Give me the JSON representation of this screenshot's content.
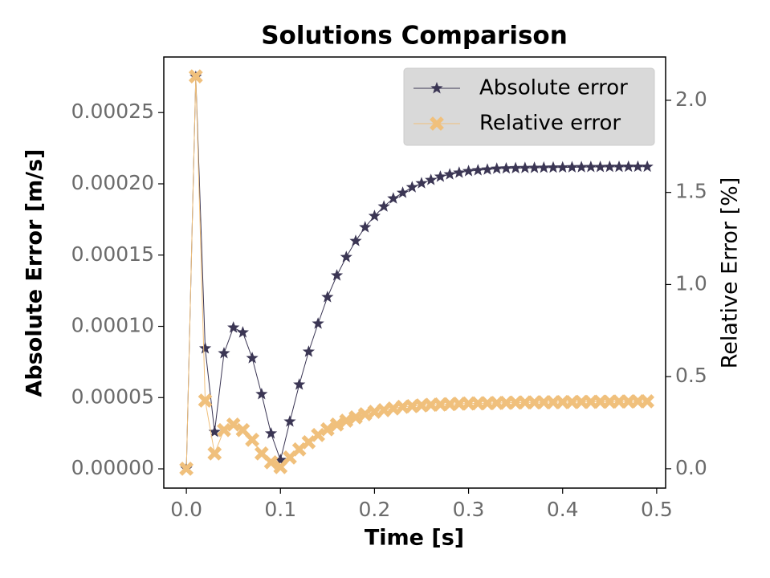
{
  "chart_data": {
    "type": "line",
    "title": "Solutions Comparison",
    "x_label": "Time [s]",
    "y_label": "Absolute Error [m/s]",
    "y2_label": "Relative Error [%]",
    "x": [
      0,
      0.01,
      0.02,
      0.03,
      0.04,
      0.05,
      0.06,
      0.07,
      0.08,
      0.09,
      0.1,
      0.11,
      0.12,
      0.13,
      0.14,
      0.15,
      0.16,
      0.17,
      0.18,
      0.19,
      0.2,
      0.21,
      0.22,
      0.23,
      0.24,
      0.25,
      0.26,
      0.27,
      0.28,
      0.29,
      0.3,
      0.31,
      0.32,
      0.33,
      0.34,
      0.35,
      0.36,
      0.37,
      0.38,
      0.39,
      0.4,
      0.41,
      0.42,
      0.43,
      0.44,
      0.45,
      0.46,
      0.47,
      0.48,
      0.49
    ],
    "series": [
      {
        "name": "Absolute error",
        "color": "#3b3654",
        "marker": "star",
        "axis": "y",
        "values": [
          0,
          0.000275,
          8.45e-05,
          2.59e-05,
          8.11e-05,
          9.91e-05,
          9.57e-05,
          7.77e-05,
          5.24e-05,
          2.48e-05,
          6.2e-06,
          3.32e-05,
          5.91e-05,
          8.22e-05,
          0.0001019,
          0.0001205,
          0.0001357,
          0.0001486,
          0.0001599,
          0.0001695,
          0.0001774,
          0.0001841,
          0.0001897,
          0.0001937,
          0.0001976,
          0.0002004,
          0.0002027,
          0.000205,
          0.0002066,
          0.0002078,
          0.0002089,
          0.0002095,
          0.00021,
          0.0002106,
          0.0002108,
          0.000211,
          0.0002111,
          0.0002112,
          0.0002113,
          0.0002114,
          0.0002115,
          0.0002116,
          0.0002117,
          0.0002118,
          0.0002118,
          0.0002119,
          0.0002119,
          0.000212,
          0.000212,
          0.000212
        ]
      },
      {
        "name": "Relative error",
        "color": "#f0c07c",
        "marker": "x",
        "axis": "y2",
        "values": [
          0,
          2.13,
          0.37,
          0.083,
          0.21,
          0.24,
          0.21,
          0.157,
          0.083,
          0.035,
          0.009,
          0.061,
          0.105,
          0.144,
          0.183,
          0.214,
          0.24,
          0.261,
          0.279,
          0.296,
          0.309,
          0.318,
          0.327,
          0.336,
          0.34,
          0.344,
          0.347,
          0.349,
          0.351,
          0.353,
          0.354,
          0.355,
          0.356,
          0.357,
          0.358,
          0.359,
          0.36,
          0.36,
          0.361,
          0.361,
          0.362,
          0.362,
          0.363,
          0.363,
          0.364,
          0.364,
          0.365,
          0.365,
          0.366,
          0.366
        ]
      }
    ],
    "xlim": [
      -0.024,
      0.5095
    ],
    "xticks": [
      {
        "value": 0,
        "label": "0.0"
      },
      0.1,
      0.2,
      0.3,
      0.4,
      0.5
    ],
    "ylim": [
      -1.35e-05,
      0.000289
    ],
    "yticks": [
      {
        "value": 0,
        "label": "0.00000"
      },
      {
        "value": 5e-05,
        "label": "0.00005"
      },
      {
        "value": 0.0001,
        "label": "0.00010"
      },
      {
        "value": 0.00015,
        "label": "0.00015"
      },
      {
        "value": 0.0002,
        "label": "0.00020"
      },
      {
        "value": 0.00025,
        "label": "0.00025"
      }
    ],
    "y2lim": [
      -0.105,
      2.235
    ],
    "y2ticks": [
      {
        "value": 0,
        "label": "0.0"
      },
      0.5,
      {
        "value": 1,
        "label": "1.0"
      },
      1.5,
      {
        "value": 2,
        "label": "2.0"
      }
    ],
    "grid": false,
    "legend": "upper right"
  }
}
